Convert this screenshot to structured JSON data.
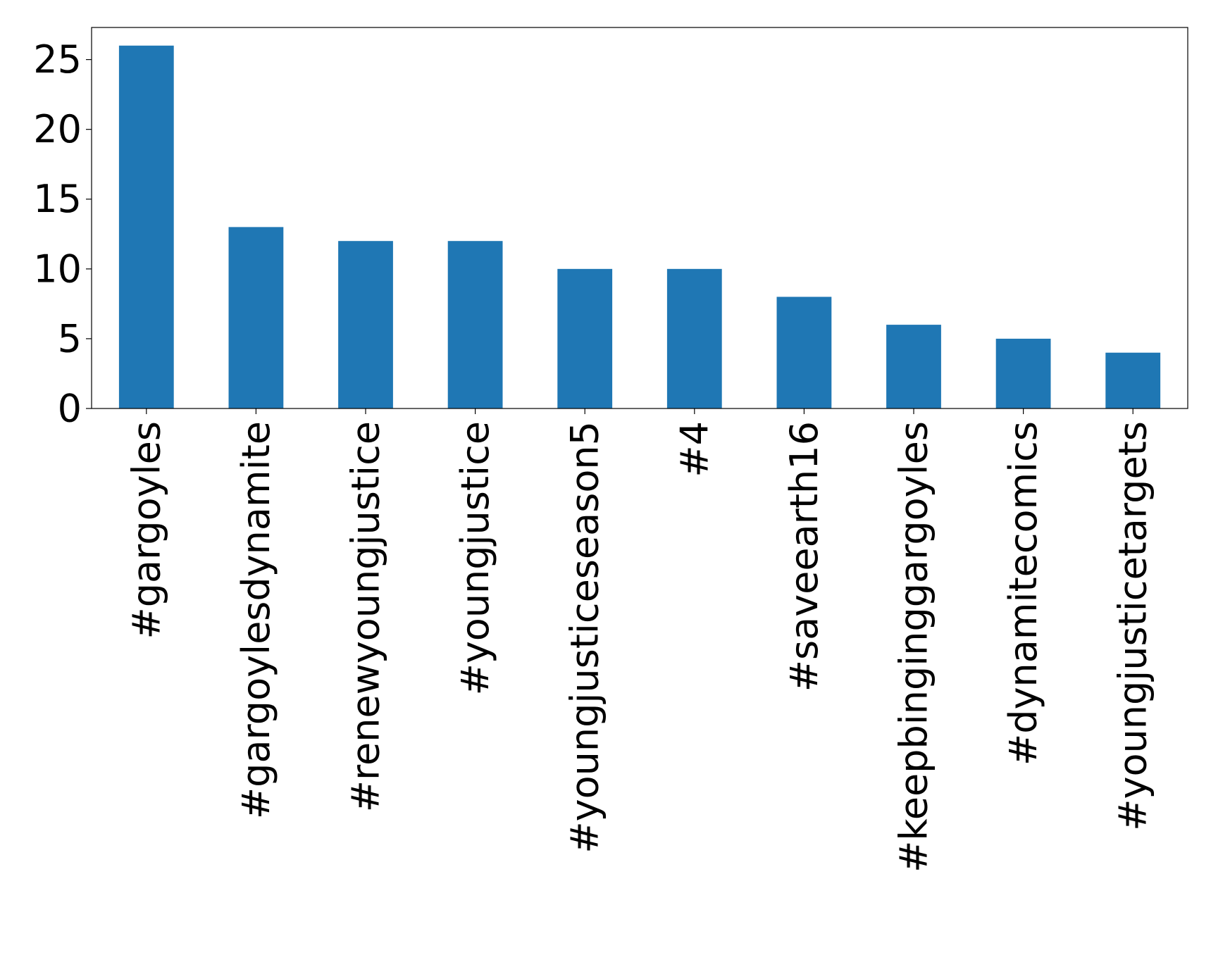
{
  "chart_data": {
    "type": "bar",
    "title": "",
    "xlabel": "",
    "ylabel": "",
    "categories": [
      "#gargoyles",
      "#gargoylesdynamite",
      "#renewyoungjustice",
      "#youngjustice",
      "#youngjusticeseason5",
      "#4",
      "#saveearth16",
      "#keepbinginggargoyles",
      "#dynamitecomics",
      "#youngjusticetargets"
    ],
    "values": [
      26,
      13,
      12,
      12,
      10,
      10,
      8,
      6,
      5,
      4
    ],
    "ylim": [
      0,
      27.3
    ],
    "yticks": [
      0,
      5,
      10,
      15,
      20,
      25
    ],
    "grid": false,
    "legend": "none",
    "colors": {
      "bar": "#1f77b4",
      "axis": "#000000",
      "background": "#ffffff"
    }
  }
}
